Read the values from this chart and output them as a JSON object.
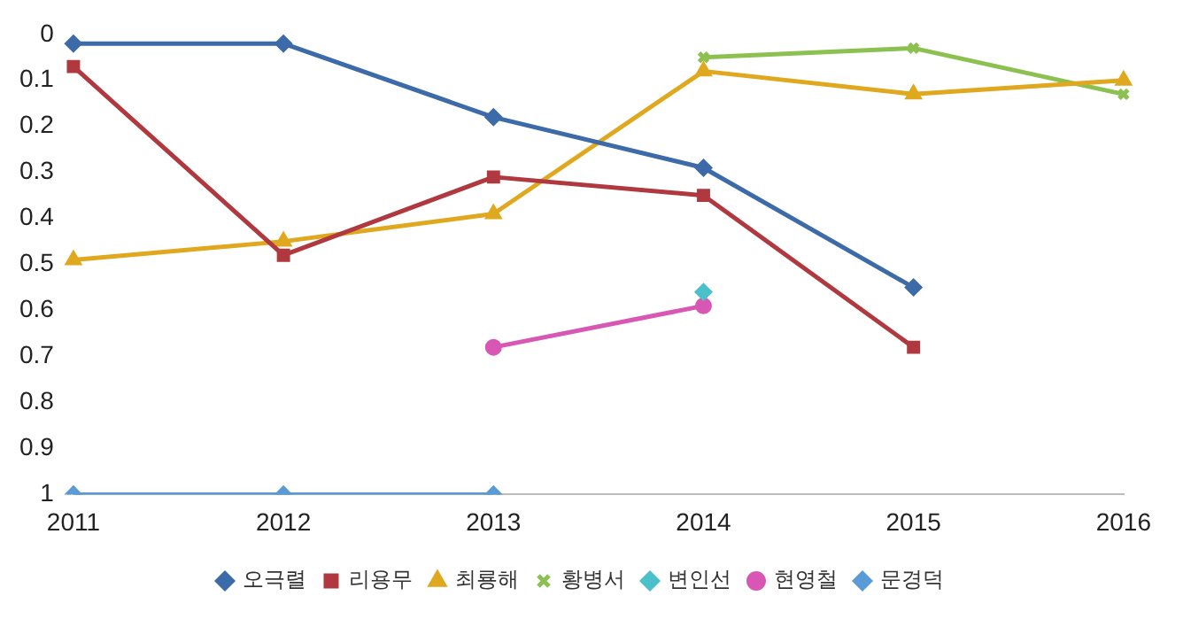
{
  "chart_data": {
    "type": "line",
    "categories": [
      "2011",
      "2012",
      "2013",
      "2014",
      "2015",
      "2016"
    ],
    "ylim": [
      1,
      0
    ],
    "yticks": [
      0,
      0.1,
      0.2,
      0.3,
      0.4,
      0.5,
      0.6,
      0.7,
      0.8,
      0.9,
      1
    ],
    "grid": false,
    "legend": "bottom",
    "series": [
      {
        "name": "오극렬",
        "color": "#3d6aa8",
        "marker": "diamond",
        "values": [
          0.02,
          0.02,
          0.18,
          0.29,
          0.55,
          null
        ]
      },
      {
        "name": "리용무",
        "color": "#b0383f",
        "marker": "square",
        "values": [
          0.07,
          0.48,
          0.31,
          0.35,
          0.68,
          null
        ]
      },
      {
        "name": "최룡해",
        "color": "#e0a81e",
        "marker": "triangle",
        "values": [
          0.49,
          0.45,
          0.39,
          0.08,
          0.13,
          0.1
        ]
      },
      {
        "name": "황병서",
        "color": "#8cc152",
        "marker": "cross",
        "values": [
          null,
          null,
          null,
          0.05,
          0.03,
          0.13
        ]
      },
      {
        "name": "변인선",
        "color": "#4cc0c8",
        "marker": "diamond",
        "values": [
          null,
          null,
          null,
          0.56,
          null,
          null
        ]
      },
      {
        "name": "현영철",
        "color": "#d957b4",
        "marker": "circle",
        "values": [
          null,
          null,
          0.68,
          0.59,
          null,
          null
        ]
      },
      {
        "name": "문경덕",
        "color": "#5b9bd5",
        "marker": "diamond",
        "values": [
          1,
          1,
          1,
          null,
          null,
          null
        ]
      }
    ]
  }
}
